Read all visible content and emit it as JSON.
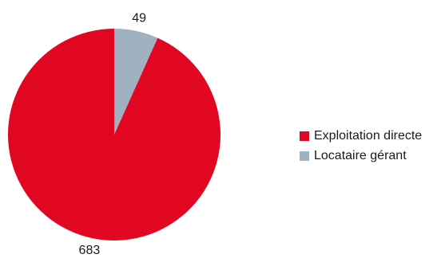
{
  "chart_data": {
    "type": "pie",
    "categories": [
      "Exploitation directe",
      "Locataire gérant"
    ],
    "values": [
      683,
      49
    ],
    "colors": [
      "#e10722",
      "#a0b1c1"
    ],
    "data_labels": [
      "683",
      "49"
    ],
    "legend": {
      "placement": "right",
      "items": [
        {
          "label": "Exploitation directe",
          "color": "#e10722"
        },
        {
          "label": "Locataire gérant",
          "color": "#a0b1c1"
        }
      ]
    }
  }
}
